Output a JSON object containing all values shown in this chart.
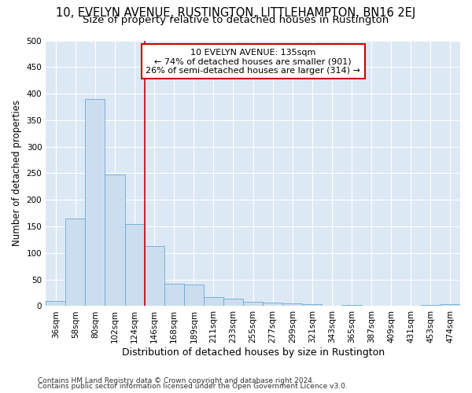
{
  "title1": "10, EVELYN AVENUE, RUSTINGTON, LITTLEHAMPTON, BN16 2EJ",
  "title2": "Size of property relative to detached houses in Rustington",
  "xlabel": "Distribution of detached houses by size in Rustington",
  "ylabel": "Number of detached properties",
  "categories": [
    "36sqm",
    "58sqm",
    "80sqm",
    "102sqm",
    "124sqm",
    "146sqm",
    "168sqm",
    "189sqm",
    "211sqm",
    "233sqm",
    "255sqm",
    "277sqm",
    "299sqm",
    "321sqm",
    "343sqm",
    "365sqm",
    "387sqm",
    "409sqm",
    "431sqm",
    "453sqm",
    "474sqm"
  ],
  "values": [
    10,
    165,
    390,
    248,
    155,
    113,
    42,
    40,
    17,
    14,
    8,
    7,
    5,
    3,
    0,
    2,
    0,
    0,
    0,
    2,
    3
  ],
  "bar_color": "#ccddf0",
  "bar_edge_color": "#6aaad4",
  "vline_x_index": 4,
  "vline_color": "#cc0000",
  "annotation_line1": "10 EVELYN AVENUE: 135sqm",
  "annotation_line2": "← 74% of detached houses are smaller (901)",
  "annotation_line3": "26% of semi-detached houses are larger (314) →",
  "annotation_box_color": "#ffffff",
  "annotation_box_edge": "#cc0000",
  "ylim": [
    0,
    500
  ],
  "yticks": [
    0,
    50,
    100,
    150,
    200,
    250,
    300,
    350,
    400,
    450,
    500
  ],
  "bg_color": "#dde8f5",
  "grid_color": "#ffffff",
  "footer1": "Contains HM Land Registry data © Crown copyright and database right 2024.",
  "footer2": "Contains public sector information licensed under the Open Government Licence v3.0.",
  "title1_fontsize": 10.5,
  "title2_fontsize": 9.5,
  "xlabel_fontsize": 9,
  "ylabel_fontsize": 8.5,
  "tick_fontsize": 7.5,
  "annot_fontsize": 8,
  "footer_fontsize": 6.5
}
